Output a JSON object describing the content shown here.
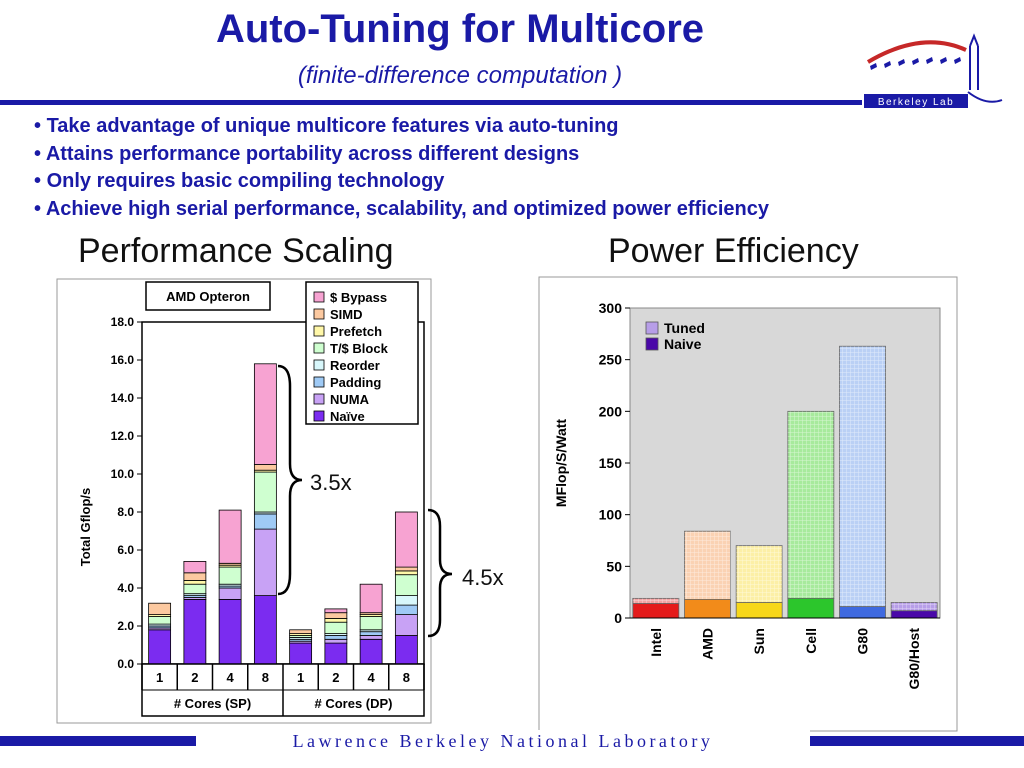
{
  "slide": {
    "title": "Auto-Tuning for Multicore",
    "subtitle": "(finite-difference computation )",
    "bullets": [
      "Take advantage of unique multicore features via auto-tuning",
      "Attains performance portability across different designs",
      "Only requires basic compiling technology",
      "Achieve high serial performance, scalability, and optimized power efficiency"
    ],
    "left_heading": "Performance Scaling",
    "right_heading": "Power Efficiency",
    "speedup_sp": "3.5x",
    "speedup_dp": "4.5x",
    "logo_text": "Berkeley Lab",
    "footer": "Lawrence Berkeley National Laboratory",
    "accent_color": "#1a1aa6"
  },
  "chart_data": [
    {
      "type": "bar",
      "stacked": true,
      "title": "AMD Opteron",
      "ylabel": "Total Gflop/s",
      "ylim": [
        0,
        18
      ],
      "yticks": [
        "0.0",
        "2.0",
        "4.0",
        "6.0",
        "8.0",
        "10.0",
        "12.0",
        "14.0",
        "16.0",
        "18.0"
      ],
      "categories": [
        "1",
        "2",
        "4",
        "8",
        "1",
        "2",
        "4",
        "8"
      ],
      "groups": [
        {
          "label": "# Cores (SP)",
          "count": 4
        },
        {
          "label": "# Cores (DP)",
          "count": 4
        }
      ],
      "legend_position": "top-right",
      "series": [
        {
          "name": "Naïve",
          "color": "#7b2cf0",
          "values": [
            1.8,
            3.4,
            3.4,
            3.6,
            1.1,
            1.1,
            1.3,
            1.5
          ]
        },
        {
          "name": "NUMA",
          "color": "#c8a2f5",
          "values": [
            0.1,
            0.1,
            0.6,
            3.5,
            0.1,
            0.2,
            0.2,
            1.1
          ]
        },
        {
          "name": "Padding",
          "color": "#9fcaf5",
          "values": [
            0.1,
            0.1,
            0.1,
            0.8,
            0.1,
            0.2,
            0.2,
            0.5
          ]
        },
        {
          "name": "Reorder",
          "color": "#d8f7fb",
          "values": [
            0.1,
            0.1,
            0.1,
            0.1,
            0.1,
            0.1,
            0.1,
            0.5
          ]
        },
        {
          "name": "T/$ Block",
          "color": "#cfffd0",
          "values": [
            0.4,
            0.5,
            0.9,
            2.1,
            0.1,
            0.6,
            0.7,
            1.1
          ]
        },
        {
          "name": "Prefetch",
          "color": "#fff7a8",
          "values": [
            0.1,
            0.2,
            0.1,
            0.1,
            0.1,
            0.2,
            0.1,
            0.2
          ]
        },
        {
          "name": "SIMD",
          "color": "#fcc9a0",
          "values": [
            0.6,
            0.4,
            0.1,
            0.3,
            0.2,
            0.3,
            0.1,
            0.2
          ]
        },
        {
          "name": "$ Bypass",
          "color": "#f7a3d2",
          "values": [
            0.0,
            0.6,
            2.8,
            5.3,
            0.0,
            0.2,
            1.5,
            2.9
          ]
        }
      ]
    },
    {
      "type": "bar",
      "stacked": true,
      "ylabel": "MFlop/S/Watt",
      "ylim": [
        0,
        300
      ],
      "yticks": [
        "0",
        "50",
        "100",
        "150",
        "200",
        "250",
        "300"
      ],
      "categories": [
        "Intel",
        "AMD",
        "Sun",
        "Cell",
        "G80",
        "G80/Host"
      ],
      "legend_position": "top-left",
      "series": [
        {
          "name": "Tuned",
          "color": "#b79ee8",
          "values": [
            5,
            66,
            55,
            181,
            252,
            8
          ]
        },
        {
          "name": "Naive",
          "color": "#4a08a8",
          "values": [
            14,
            18,
            15,
            19,
            11,
            7
          ]
        }
      ],
      "bar_colors": [
        {
          "base": "#e41b1b",
          "top": "#f2a3a3"
        },
        {
          "base": "#f28b1a",
          "top": "#fad2b3"
        },
        {
          "base": "#f7d71a",
          "top": "#fcefa6"
        },
        {
          "base": "#2cc62c",
          "top": "#a7ea9c"
        },
        {
          "base": "#3f6ae0",
          "top": "#bad0f5"
        },
        {
          "base": "#4a08a8",
          "top": "#b79ee8"
        }
      ]
    }
  ]
}
